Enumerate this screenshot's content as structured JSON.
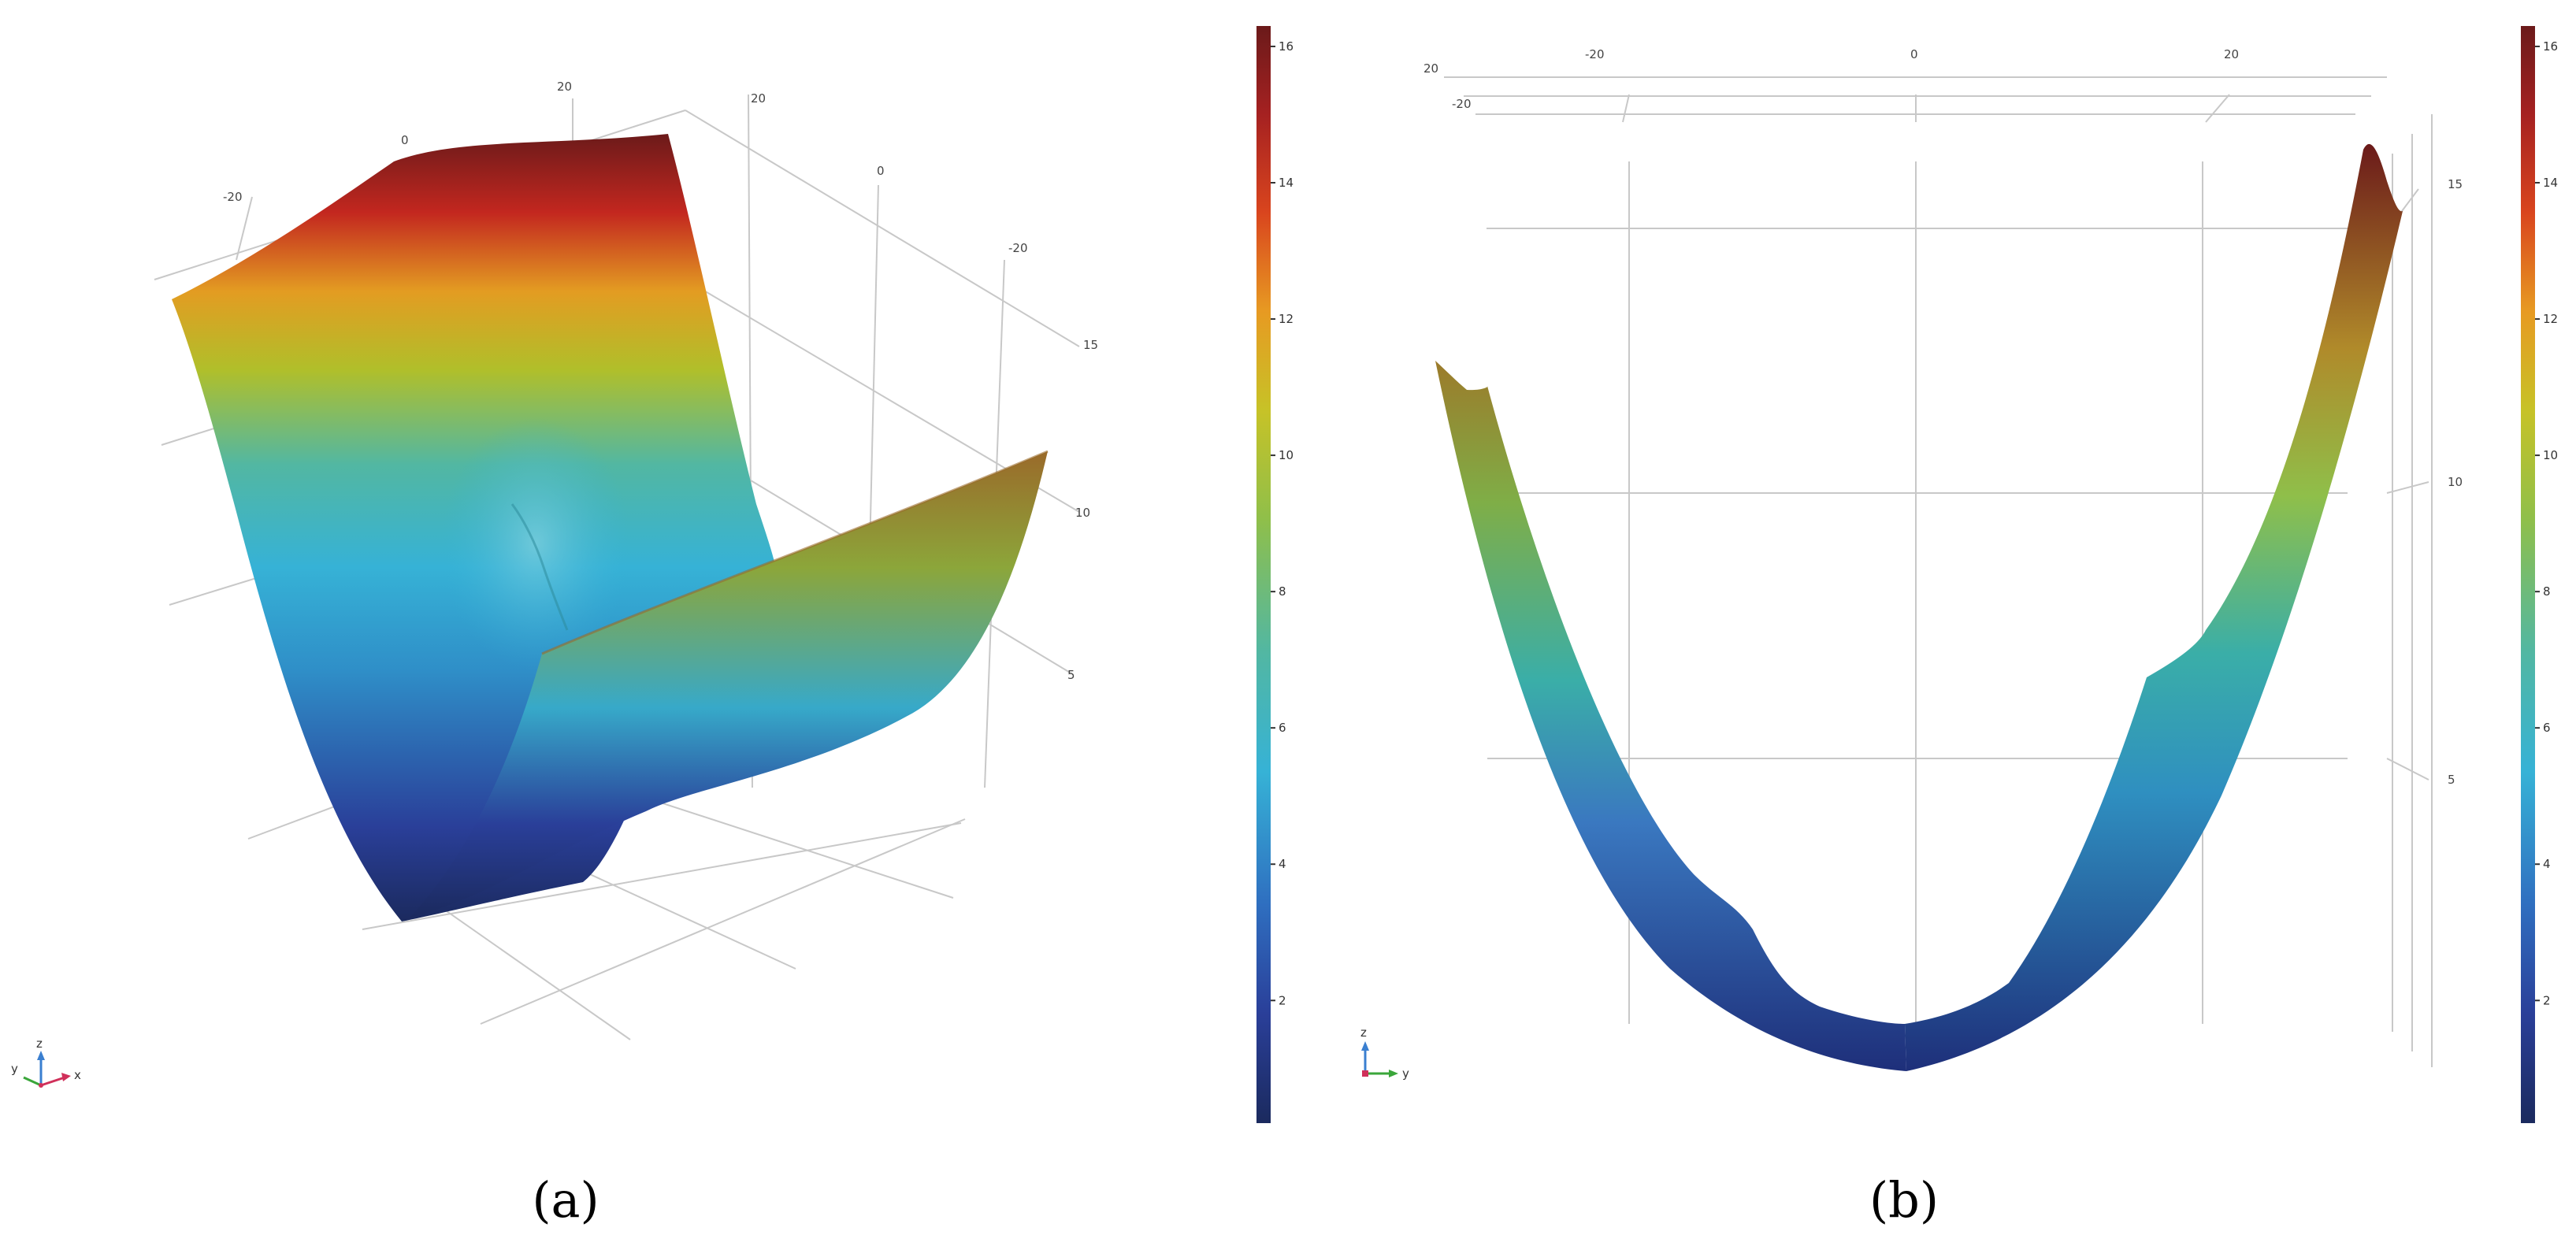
{
  "chart_data": [
    {
      "panel": "a",
      "type": "surface3d",
      "panel_label": "(a)",
      "title": "",
      "xlabel": "",
      "ylabel": "",
      "zlabel": "",
      "axis_ticks": {
        "y_back": [
          "-20",
          "0",
          "20"
        ],
        "x_side": [
          "20",
          "0",
          "-20"
        ],
        "z": [
          "15",
          "10",
          "5"
        ]
      },
      "colorbar": {
        "ticks": [
          "16",
          "14",
          "12",
          "10",
          "8",
          "6",
          "4",
          "2"
        ],
        "range": [
          0.2,
          16.3
        ],
        "colors": [
          "#1b2a5e",
          "#2a3f99",
          "#2f6fc0",
          "#36b2d6",
          "#52b7a2",
          "#8fbf4a",
          "#c7c227",
          "#e79a22",
          "#d9451e",
          "#a52121",
          "#6b1a1a"
        ]
      },
      "axes_triad": {
        "labels": [
          "z",
          "y",
          "x"
        ],
        "colors": {
          "z": "#3a7fd0",
          "y": "#3aa63a",
          "x": "#d0305a"
        }
      }
    },
    {
      "panel": "b",
      "type": "surface3d",
      "panel_label": "(b)",
      "title": "",
      "xlabel": "",
      "ylabel": "",
      "zlabel": "",
      "axis_ticks": {
        "y_top": [
          "-20",
          "0",
          "20"
        ],
        "x_depth": [
          "20",
          "-20"
        ],
        "z": [
          "15",
          "10",
          "5"
        ]
      },
      "colorbar": {
        "ticks": [
          "16",
          "14",
          "12",
          "10",
          "8",
          "6",
          "4",
          "2"
        ],
        "range": [
          0.2,
          16.3
        ],
        "colors": [
          "#1b2a5e",
          "#2a3f99",
          "#2f6fc0",
          "#36b2d6",
          "#52b7a2",
          "#8fbf4a",
          "#c7c227",
          "#e79a22",
          "#d9451e",
          "#a52121",
          "#6b1a1a"
        ]
      },
      "axes_triad": {
        "labels": [
          "z",
          "y"
        ],
        "colors": {
          "z": "#3a7fd0",
          "y": "#3aa63a"
        }
      }
    }
  ]
}
